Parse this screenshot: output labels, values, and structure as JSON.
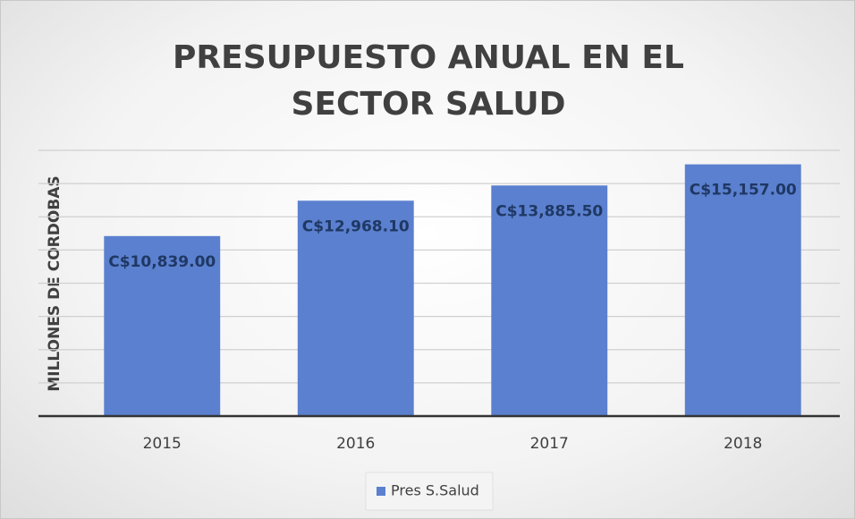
{
  "chart_data": {
    "type": "bar",
    "title": "PRESUPUESTO ANUAL EN EL SECTOR SALUD",
    "y_label": "MILLONES DE CORDOBAS",
    "categories": [
      "2015",
      "2016",
      "2017",
      "2018"
    ],
    "series": [
      {
        "name": "Pres S.Salud",
        "color": "#5b80cf",
        "values": [
          10839,
          12968.1,
          13885.5,
          15157
        ],
        "value_labels": [
          "C$10,839.00",
          "C$12,968.10",
          "C$13,885.50",
          "C$15,157.00"
        ]
      }
    ],
    "ylim": [
      0,
      16000
    ],
    "yticks": [
      0,
      2000,
      4000,
      6000,
      8000,
      10000,
      12000,
      14000,
      16000
    ],
    "grid": true,
    "legend": "bottom"
  }
}
